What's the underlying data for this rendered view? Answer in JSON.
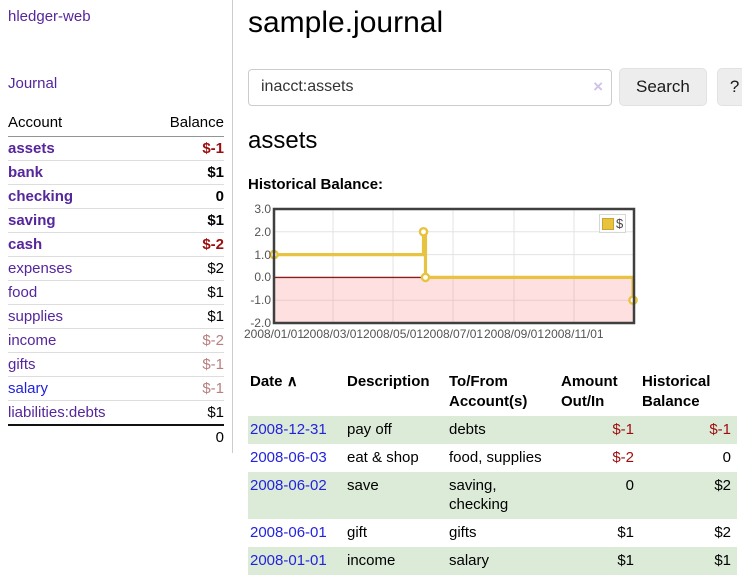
{
  "colors": {
    "link_visited_purple": "#55269c",
    "link_unvisited_blue": "#2323dd",
    "negative_strong": "#9e0d0d",
    "negative_muted": "#b97e7e",
    "row_stripe_green": "#dcead8",
    "series_yellow": "#e8c33f"
  },
  "sidebar": {
    "brand": "hledger-web",
    "journal_link": "Journal",
    "accounts": {
      "headers": {
        "account": "Account",
        "balance": "Balance"
      },
      "rows": [
        {
          "name": "assets",
          "balance": "$-1",
          "depth": 1
        },
        {
          "name": "bank",
          "balance": "$1",
          "depth": 2
        },
        {
          "name": "checking",
          "balance": "0",
          "depth": 3
        },
        {
          "name": "saving",
          "balance": "$1",
          "depth": 3
        },
        {
          "name": "cash",
          "balance": "$-2",
          "depth": 2
        },
        {
          "name": "expenses",
          "balance": "$2",
          "depth": 1
        },
        {
          "name": "food",
          "balance": "$1",
          "depth": 2
        },
        {
          "name": "supplies",
          "balance": "$1",
          "depth": 2
        },
        {
          "name": "income",
          "balance": "$-2",
          "depth": 1
        },
        {
          "name": "gifts",
          "balance": "$-1",
          "depth": 2
        },
        {
          "name": "salary",
          "balance": "$-1",
          "depth": 2
        },
        {
          "name": "liabilities:debts",
          "balance": "$1",
          "depth": 1
        }
      ],
      "total": "0"
    }
  },
  "main": {
    "title": "sample.journal",
    "search": {
      "value": "inacct:assets",
      "clear_icon": "×",
      "button_label": "Search",
      "help_label": "?"
    },
    "account_heading": "assets",
    "chart_title": "Historical Balance:"
  },
  "chart_data": {
    "type": "line",
    "title": "Historical Balance",
    "step": true,
    "series": [
      {
        "name": "$",
        "color": "#e8c33f",
        "points": [
          [
            "2008-01-01",
            1
          ],
          [
            "2008-06-01",
            2
          ],
          [
            "2008-06-03",
            0
          ],
          [
            "2008-12-31",
            -1
          ]
        ]
      }
    ],
    "ylim": [
      -2.0,
      3.0
    ],
    "yticks": [
      "3.0",
      "2.0",
      "1.0",
      "0.0",
      "-1.0",
      "-2.0"
    ],
    "ytick_values": [
      3,
      2,
      1,
      0,
      -1,
      -2
    ],
    "xticks": [
      "2008/01/01",
      "2008/03/01",
      "2008/05/01",
      "2008/07/01",
      "2008/09/01",
      "2008/11/01"
    ],
    "x_start": "2008-01-01",
    "x_end": "2009-01-01",
    "grid": true,
    "legend": "$",
    "legend_position": "top-right",
    "negative_region_fill": "rgba(255,115,115,0.22)",
    "zero_line_color": "#8b1c1c"
  },
  "register": {
    "headers": {
      "date": "Date",
      "sort_indicator": "∧",
      "description": "Description",
      "accounts": "To/From Account(s)",
      "amount": "Amount Out/In",
      "balance": "Historical Balance"
    },
    "rows": [
      {
        "date": "2008-12-31",
        "description": "pay off",
        "accounts": "debts",
        "amount": "$-1",
        "balance": "$-1"
      },
      {
        "date": "2008-06-03",
        "description": "eat & shop",
        "accounts": "food, supplies",
        "amount": "$-2",
        "balance": "0"
      },
      {
        "date": "2008-06-02",
        "description": "save",
        "accounts": "saving, checking",
        "amount": "0",
        "balance": "$2"
      },
      {
        "date": "2008-06-01",
        "description": "gift",
        "accounts": "gifts",
        "amount": "$1",
        "balance": "$2"
      },
      {
        "date": "2008-01-01",
        "description": "income",
        "accounts": "salary",
        "amount": "$1",
        "balance": "$1"
      }
    ]
  }
}
